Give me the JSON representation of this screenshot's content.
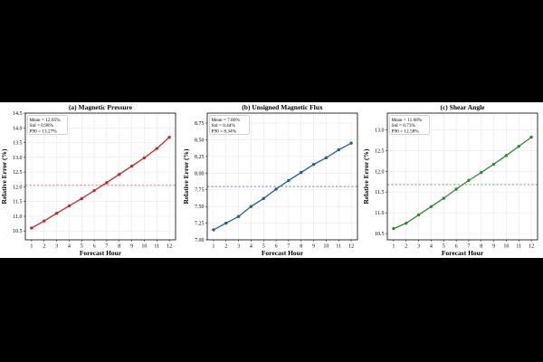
{
  "chart_data": [
    {
      "type": "line",
      "title": "(a) Magnetic Pressure",
      "xlabel": "Forecast Hour",
      "ylabel": "Relative Error (%)",
      "x": [
        1,
        2,
        3,
        4,
        5,
        6,
        7,
        8,
        9,
        10,
        11,
        12
      ],
      "xlim": [
        0.5,
        12.5
      ],
      "ylim": [
        10.2,
        14.5
      ],
      "yticks": [
        10.5,
        11.0,
        11.5,
        12.0,
        12.5,
        13.0,
        13.5,
        14.0,
        14.5
      ],
      "ytick_labels": [
        "10.5",
        "11.0",
        "11.5",
        "12.0",
        "12.5",
        "13.0",
        "13.5",
        "14.0",
        "14.5"
      ],
      "grid": true,
      "color": "#c62828",
      "series": [
        {
          "values": [
            10.6,
            10.84,
            11.1,
            11.35,
            11.6,
            11.87,
            12.14,
            12.42,
            12.7,
            12.98,
            13.3,
            13.68
          ]
        }
      ],
      "mean_line": 12.05,
      "stats": [
        "Mean = 12.05%",
        "Std = 0.98%",
        "P90 = 13.27%"
      ]
    },
    {
      "type": "line",
      "title": "(b) Unsigned Magnetic Flux",
      "xlabel": "Forecast Hour",
      "ylabel": "Relative Error (%)",
      "x": [
        1,
        2,
        3,
        4,
        5,
        6,
        7,
        8,
        9,
        10,
        11,
        12
      ],
      "xlim": [
        0.5,
        12.5
      ],
      "ylim": [
        7.0,
        8.9
      ],
      "yticks": [
        7.0,
        7.25,
        7.5,
        7.75,
        8.0,
        8.25,
        8.5,
        8.75
      ],
      "ytick_labels": [
        "7.00",
        "7.25",
        "7.50",
        "7.75",
        "8.00",
        "8.25",
        "8.50",
        "8.75"
      ],
      "grid": true,
      "color": "#1f5f9e",
      "series": [
        {
          "values": [
            7.15,
            7.25,
            7.35,
            7.5,
            7.62,
            7.76,
            7.89,
            8.01,
            8.13,
            8.23,
            8.35,
            8.45
          ]
        }
      ],
      "mean_line": 7.8,
      "stats": [
        "Mean = 7.80%",
        "Std = 0.44%",
        "P90 = 8.34%"
      ]
    },
    {
      "type": "line",
      "title": "(c) Shear Angle",
      "xlabel": "Forecast Hour",
      "ylabel": "Relative Error (%)",
      "x": [
        1,
        2,
        3,
        4,
        5,
        6,
        7,
        8,
        9,
        10,
        11,
        12
      ],
      "xlim": [
        0.5,
        12.5
      ],
      "ylim": [
        10.35,
        13.4
      ],
      "yticks": [
        10.5,
        11.0,
        11.5,
        12.0,
        12.5,
        13.0
      ],
      "ytick_labels": [
        "10.5",
        "11.0",
        "11.5",
        "12.0",
        "12.5",
        "13.0"
      ],
      "grid": true,
      "color": "#2e8b2e",
      "series": [
        {
          "values": [
            10.62,
            10.75,
            10.95,
            11.15,
            11.35,
            11.57,
            11.78,
            11.97,
            12.17,
            12.38,
            12.6,
            12.82
          ]
        }
      ],
      "mean_line": 11.68,
      "stats": [
        "Mean = 11.68%",
        "Std = 0.73%",
        "P90 = 12.58%"
      ]
    }
  ]
}
